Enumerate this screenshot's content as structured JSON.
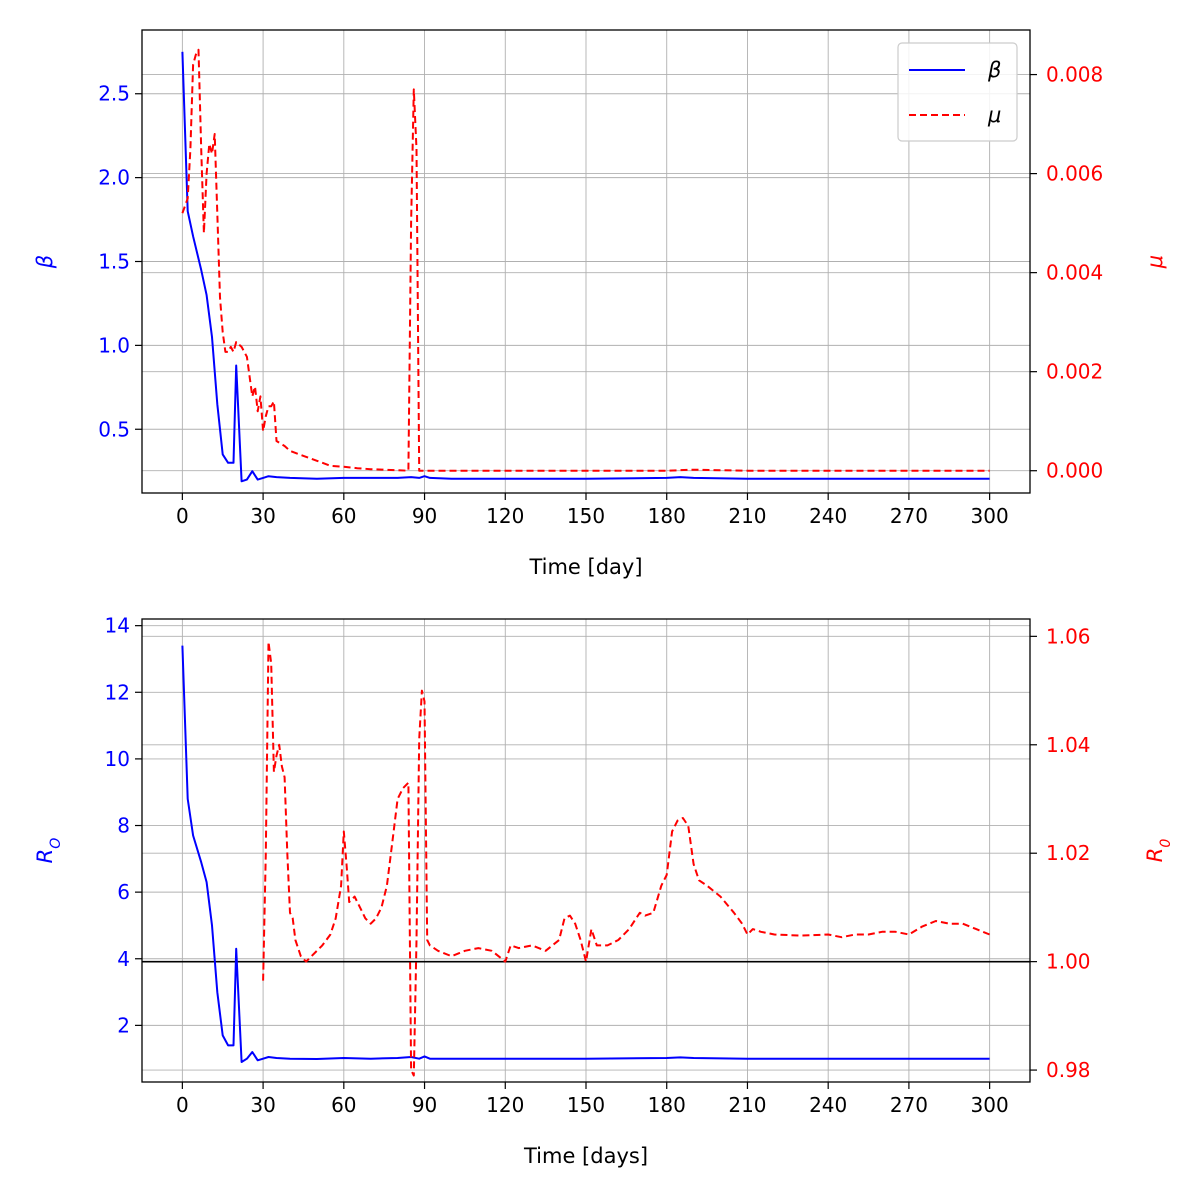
{
  "chart_data": [
    {
      "type": "line",
      "xlabel": "Time [day]",
      "ylabel_left": "β",
      "ylabel_right": "μ",
      "xlim": [
        -15,
        315
      ],
      "ylim_left": [
        0.12,
        2.88
      ],
      "ylim_right": [
        -0.00045,
        0.0089
      ],
      "xticks": [
        0,
        30,
        60,
        90,
        120,
        150,
        180,
        210,
        240,
        270,
        300
      ],
      "yticks_left": [
        0.5,
        1.0,
        1.5,
        2.0,
        2.5
      ],
      "yticks_right": [
        0.0,
        0.002,
        0.004,
        0.006,
        0.008
      ],
      "grid": true,
      "legend": {
        "placement": "top-right",
        "entries": [
          {
            "label": "β",
            "color": "#0000ff",
            "style": "solid"
          },
          {
            "label": "μ",
            "color": "#ff0000",
            "style": "dashed"
          }
        ]
      },
      "series": [
        {
          "name": "β",
          "axis": "left",
          "color": "#0000ff",
          "style": "solid",
          "x": [
            0,
            2,
            4,
            7,
            9,
            11,
            13,
            15,
            17,
            19,
            20,
            22,
            24,
            26,
            28,
            30,
            32,
            35,
            40,
            50,
            60,
            70,
            80,
            85,
            88,
            90,
            92,
            100,
            150,
            180,
            185,
            190,
            210,
            240,
            270,
            300
          ],
          "y": [
            2.75,
            1.8,
            1.65,
            1.45,
            1.3,
            1.05,
            0.65,
            0.35,
            0.3,
            0.3,
            0.88,
            0.19,
            0.2,
            0.25,
            0.2,
            0.21,
            0.22,
            0.215,
            0.21,
            0.205,
            0.21,
            0.21,
            0.21,
            0.215,
            0.21,
            0.22,
            0.21,
            0.205,
            0.205,
            0.21,
            0.215,
            0.21,
            0.205,
            0.205,
            0.205,
            0.205
          ]
        },
        {
          "name": "μ",
          "axis": "right",
          "color": "#ff0000",
          "style": "dashed",
          "x": [
            0,
            2,
            3,
            4,
            5,
            6,
            7,
            8,
            9,
            10,
            11,
            12,
            13,
            14,
            15,
            16,
            17,
            18,
            19,
            20,
            22,
            24,
            26,
            27,
            28,
            29,
            30,
            31,
            32,
            33,
            34,
            35,
            38,
            40,
            45,
            50,
            55,
            60,
            65,
            70,
            75,
            80,
            84,
            85,
            86,
            87,
            88,
            89,
            90,
            100,
            150,
            180,
            190,
            200,
            210,
            240,
            270,
            300
          ],
          "y": [
            0.0052,
            0.0055,
            0.0065,
            0.0082,
            0.0084,
            0.0085,
            0.0065,
            0.0048,
            0.006,
            0.0066,
            0.0064,
            0.0068,
            0.0052,
            0.0035,
            0.0028,
            0.0024,
            0.0024,
            0.0025,
            0.0024,
            0.0026,
            0.0025,
            0.0023,
            0.0015,
            0.0017,
            0.0012,
            0.0015,
            0.0008,
            0.0011,
            0.0013,
            0.0013,
            0.0014,
            0.0006,
            0.0005,
            0.0004,
            0.0003,
            0.0002,
            0.0001,
            8e-05,
            5e-05,
            3e-05,
            2e-05,
            1e-05,
            0.0,
            0.005,
            0.0077,
            0.0065,
            0.0,
            0.0,
            0.0,
            0.0,
            0.0,
            0.0,
            2e-05,
            1e-05,
            0.0,
            0.0,
            0.0,
            0.0
          ]
        }
      ]
    },
    {
      "type": "line",
      "xlabel": "Time [days]",
      "ylabel_left": "R_O",
      "ylabel_right": "R_0",
      "xlim": [
        -15,
        315
      ],
      "ylim_left": [
        0.3,
        14.2
      ],
      "ylim_right": [
        0.9778,
        1.0632
      ],
      "xticks": [
        0,
        30,
        60,
        90,
        120,
        150,
        180,
        210,
        240,
        270,
        300
      ],
      "yticks_left": [
        2,
        4,
        6,
        8,
        10,
        12,
        14
      ],
      "yticks_right": [
        0.98,
        1.0,
        1.02,
        1.04,
        1.06
      ],
      "hline_right": 1.0,
      "grid": true,
      "series": [
        {
          "name": "R_O",
          "axis": "left",
          "color": "#0000ff",
          "style": "solid",
          "x": [
            0,
            2,
            4,
            7,
            9,
            11,
            13,
            15,
            17,
            19,
            20,
            22,
            24,
            26,
            28,
            30,
            32,
            35,
            40,
            50,
            60,
            70,
            80,
            85,
            88,
            90,
            92,
            100,
            150,
            180,
            185,
            190,
            210,
            240,
            270,
            300
          ],
          "y": [
            13.4,
            8.8,
            7.7,
            6.9,
            6.3,
            5.0,
            3.0,
            1.7,
            1.4,
            1.4,
            4.3,
            0.9,
            1.0,
            1.2,
            0.95,
            1.0,
            1.05,
            1.02,
            1.0,
            0.99,
            1.02,
            1.0,
            1.02,
            1.05,
            1.0,
            1.07,
            1.0,
            1.0,
            1.0,
            1.02,
            1.04,
            1.02,
            1.0,
            1.0,
            1.0,
            1.0
          ]
        },
        {
          "name": "R_0",
          "axis": "right",
          "color": "#ff0000",
          "style": "dashed",
          "x": [
            30,
            31,
            32,
            33,
            34,
            35,
            36,
            37,
            38,
            39,
            40,
            41,
            42,
            44,
            46,
            48,
            50,
            52,
            55,
            57,
            59,
            60,
            61,
            62,
            64,
            66,
            68,
            70,
            72,
            74,
            76,
            78,
            80,
            82,
            84,
            85,
            86,
            87,
            88,
            89,
            90,
            91,
            92,
            95,
            100,
            105,
            110,
            115,
            120,
            122,
            125,
            130,
            135,
            140,
            142,
            144,
            146,
            148,
            150,
            152,
            154,
            158,
            162,
            166,
            170,
            172,
            175,
            178,
            180,
            182,
            184,
            186,
            188,
            190,
            192,
            195,
            200,
            205,
            208,
            210,
            212,
            215,
            220,
            230,
            240,
            245,
            250,
            255,
            260,
            265,
            270,
            275,
            280,
            285,
            290,
            295,
            300
          ],
          "y": [
            0.9965,
            1.02,
            1.059,
            1.055,
            1.035,
            1.038,
            1.04,
            1.036,
            1.034,
            1.02,
            1.009,
            1.008,
            1.004,
            1.001,
            1.0,
            1.001,
            1.002,
            1.003,
            1.005,
            1.008,
            1.014,
            1.024,
            1.018,
            1.011,
            1.012,
            1.01,
            1.008,
            1.007,
            1.008,
            1.01,
            1.014,
            1.022,
            1.03,
            1.032,
            1.033,
            0.98,
            0.979,
            1.004,
            1.041,
            1.05,
            1.048,
            1.004,
            1.003,
            1.002,
            1.001,
            1.002,
            1.0025,
            1.002,
            1.0,
            1.003,
            1.0025,
            1.003,
            1.002,
            1.004,
            1.008,
            1.0085,
            1.007,
            1.004,
            1.0,
            1.006,
            1.003,
            1.003,
            1.004,
            1.006,
            1.009,
            1.0085,
            1.009,
            1.014,
            1.016,
            1.024,
            1.026,
            1.0265,
            1.025,
            1.018,
            1.015,
            1.014,
            1.012,
            1.009,
            1.007,
            1.005,
            1.006,
            1.0055,
            1.005,
            1.0048,
            1.005,
            1.0045,
            1.005,
            1.005,
            1.0055,
            1.0055,
            1.005,
            1.0065,
            1.0075,
            1.007,
            1.007,
            1.006,
            1.005
          ]
        }
      ]
    }
  ]
}
